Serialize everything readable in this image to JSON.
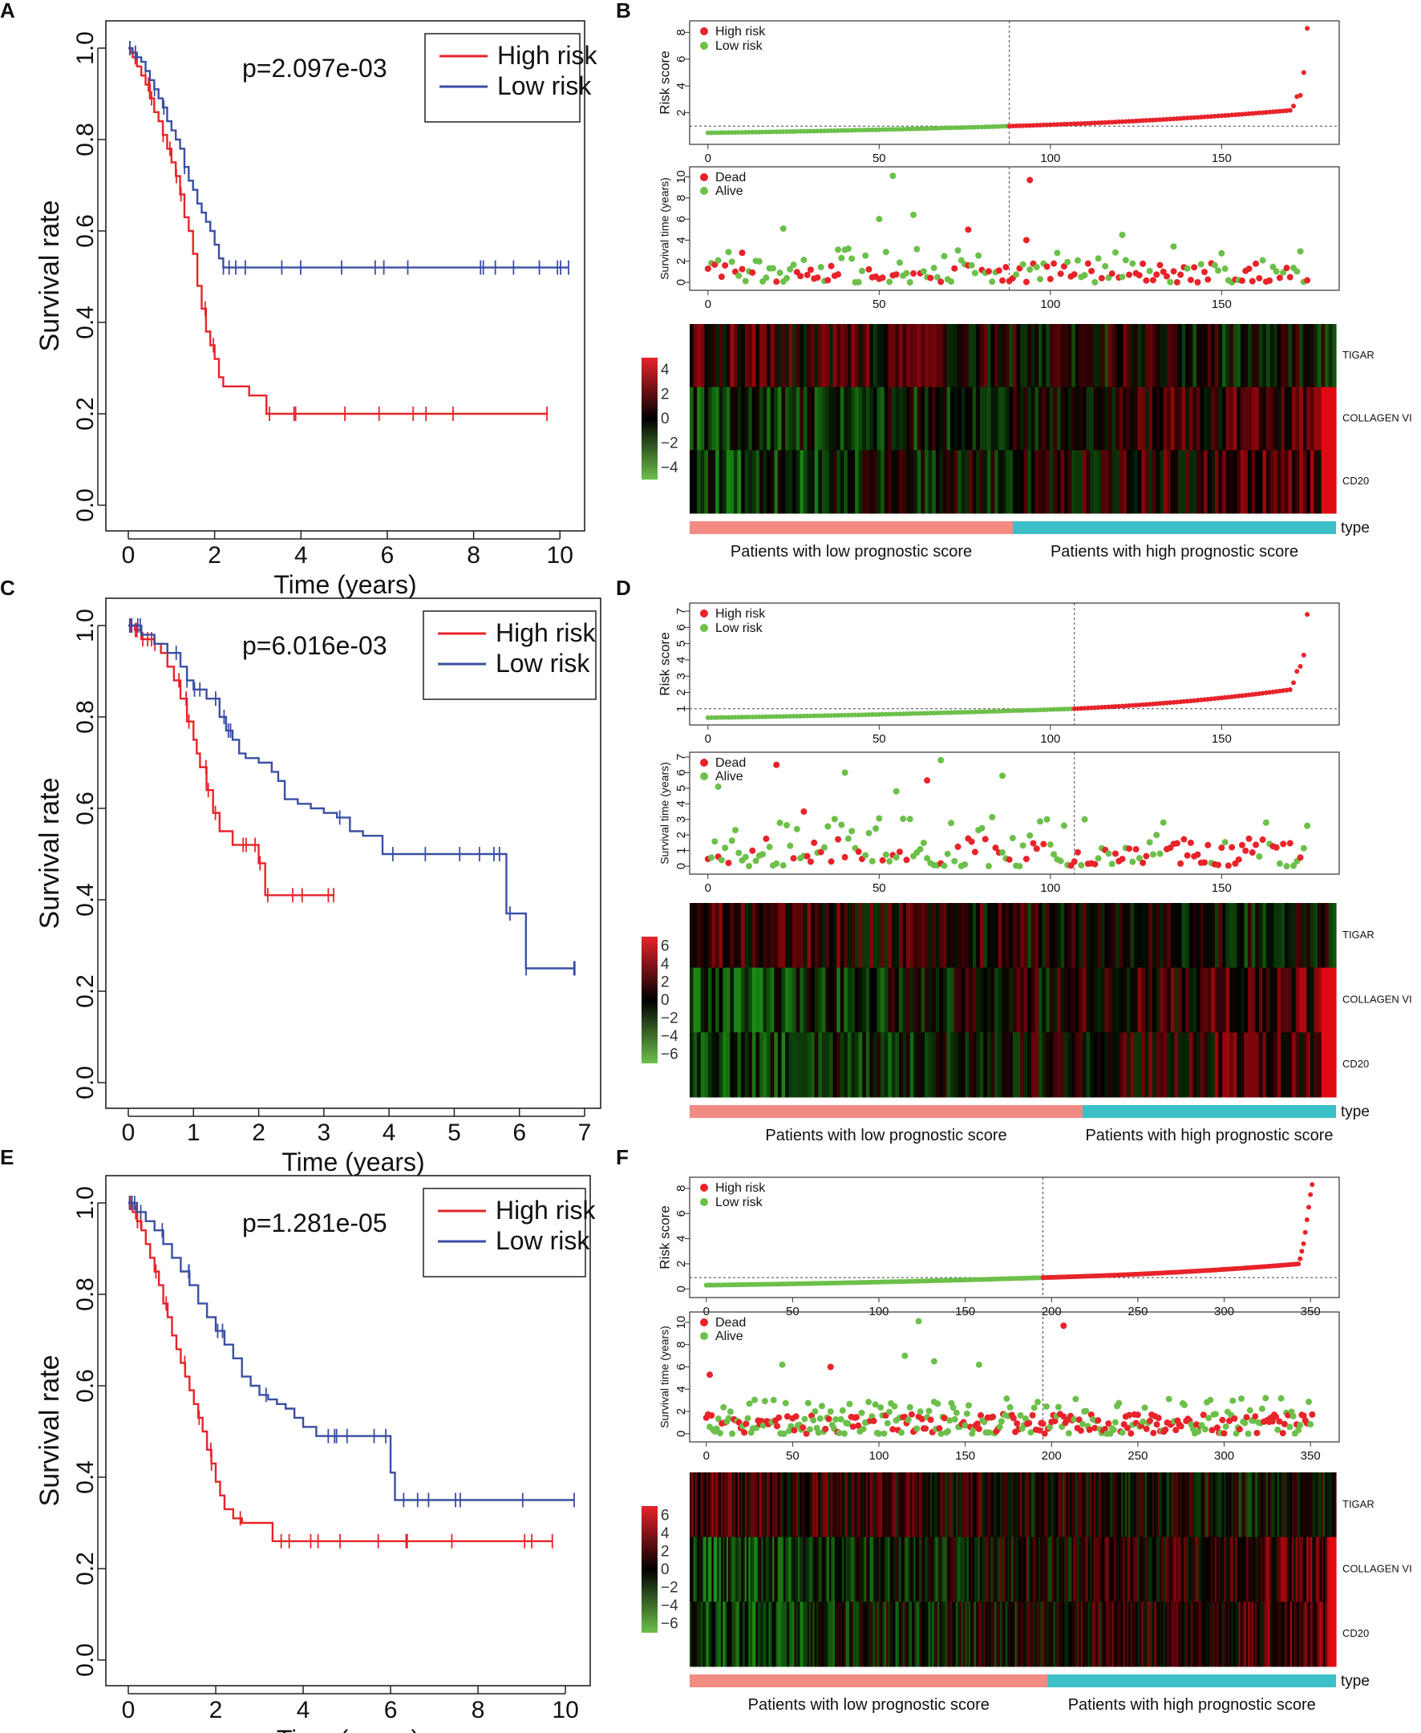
{
  "figure": {
    "panels": {
      "A": {
        "label": "A"
      },
      "B": {
        "label": "B"
      },
      "C": {
        "label": "C"
      },
      "D": {
        "label": "D"
      },
      "E": {
        "label": "E"
      },
      "F": {
        "label": "F"
      }
    }
  },
  "colors": {
    "high": "#e8232a",
    "low": "#3a4fa3",
    "green": "#6cc04a",
    "red_dot": "#e8232a",
    "bar_low": "#f28b82",
    "bar_high": "#3cc0c8"
  },
  "chart_data": [
    {
      "panel": "A",
      "type": "line",
      "title": "",
      "xlabel": "Time (years)",
      "ylabel": "Survival rate",
      "xlim": [
        0,
        10.2
      ],
      "ylim": [
        0,
        1.0
      ],
      "xticks": [
        0,
        2,
        4,
        6,
        8,
        10
      ],
      "yticks": [
        0.0,
        0.2,
        0.4,
        0.6,
        0.8,
        1.0
      ],
      "annotation": "p=2.097e-03",
      "legend": {
        "position": "top-right",
        "entries": [
          "High risk",
          "Low risk"
        ]
      },
      "series": [
        {
          "name": "High risk",
          "color_key": "high",
          "x": [
            0,
            0.05,
            0.1,
            0.2,
            0.3,
            0.4,
            0.5,
            0.6,
            0.7,
            0.8,
            0.9,
            1.0,
            1.1,
            1.2,
            1.3,
            1.4,
            1.5,
            1.6,
            1.7,
            1.8,
            1.9,
            2.0,
            2.1,
            2.2,
            2.5,
            2.8,
            3.1,
            3.2,
            9.7
          ],
          "y": [
            1.0,
            0.99,
            0.98,
            0.96,
            0.94,
            0.92,
            0.89,
            0.86,
            0.84,
            0.81,
            0.78,
            0.75,
            0.72,
            0.68,
            0.63,
            0.6,
            0.55,
            0.48,
            0.43,
            0.38,
            0.35,
            0.32,
            0.28,
            0.26,
            0.26,
            0.24,
            0.24,
            0.2,
            0.2
          ]
        },
        {
          "name": "Low risk",
          "color_key": "low",
          "x": [
            0,
            0.1,
            0.2,
            0.3,
            0.4,
            0.5,
            0.6,
            0.7,
            0.8,
            0.9,
            1.0,
            1.1,
            1.2,
            1.3,
            1.4,
            1.5,
            1.6,
            1.7,
            1.8,
            1.9,
            2.0,
            2.1,
            2.2,
            10.2
          ],
          "y": [
            1.0,
            0.99,
            0.98,
            0.97,
            0.95,
            0.93,
            0.91,
            0.89,
            0.87,
            0.84,
            0.82,
            0.8,
            0.78,
            0.74,
            0.71,
            0.69,
            0.66,
            0.64,
            0.62,
            0.6,
            0.57,
            0.54,
            0.52,
            0.52
          ]
        }
      ]
    },
    {
      "panel": "C",
      "type": "line",
      "title": "",
      "xlabel": "Time (years)",
      "ylabel": "Survival rate",
      "xlim": [
        0,
        7
      ],
      "ylim": [
        0,
        1.0
      ],
      "xticks": [
        0,
        1,
        2,
        3,
        4,
        5,
        6,
        7
      ],
      "yticks": [
        0.0,
        0.2,
        0.4,
        0.6,
        0.8,
        1.0
      ],
      "annotation": "p=6.016e-03",
      "legend": {
        "position": "top-right",
        "entries": [
          "High risk",
          "Low risk"
        ]
      },
      "series": [
        {
          "name": "High risk",
          "color_key": "high",
          "x": [
            0,
            0.1,
            0.2,
            0.4,
            0.5,
            0.6,
            0.7,
            0.8,
            0.9,
            1.0,
            1.05,
            1.1,
            1.2,
            1.3,
            1.4,
            1.6,
            1.8,
            2.0,
            2.1,
            2.2,
            2.4,
            2.6,
            2.8,
            3.0,
            3.15
          ],
          "y": [
            1.0,
            0.99,
            0.97,
            0.96,
            0.94,
            0.91,
            0.88,
            0.84,
            0.79,
            0.75,
            0.72,
            0.69,
            0.64,
            0.59,
            0.55,
            0.52,
            0.52,
            0.48,
            0.41,
            0.41,
            0.41,
            0.41,
            0.41,
            0.41,
            0.41
          ]
        },
        {
          "name": "Low risk",
          "color_key": "low",
          "x": [
            0,
            0.2,
            0.4,
            0.6,
            0.8,
            0.9,
            1.0,
            1.2,
            1.4,
            1.5,
            1.6,
            1.7,
            1.8,
            2.0,
            2.2,
            2.3,
            2.4,
            2.6,
            2.8,
            3.0,
            3.2,
            3.4,
            3.6,
            3.8,
            3.9,
            4.2,
            5.7,
            5.8,
            6.0,
            6.1,
            6.85
          ],
          "y": [
            1.0,
            0.98,
            0.96,
            0.94,
            0.91,
            0.88,
            0.86,
            0.84,
            0.8,
            0.77,
            0.75,
            0.72,
            0.71,
            0.7,
            0.68,
            0.66,
            0.62,
            0.61,
            0.6,
            0.59,
            0.58,
            0.55,
            0.54,
            0.54,
            0.5,
            0.5,
            0.5,
            0.37,
            0.37,
            0.25,
            0.25
          ]
        }
      ]
    },
    {
      "panel": "E",
      "type": "line",
      "title": "",
      "xlabel": "Time (years)",
      "ylabel": "Survival rate",
      "xlim": [
        0,
        10.2
      ],
      "ylim": [
        0,
        1.0
      ],
      "xticks": [
        0,
        2,
        4,
        6,
        8,
        10
      ],
      "yticks": [
        0.0,
        0.2,
        0.4,
        0.6,
        0.8,
        1.0
      ],
      "annotation": "p=1.281e-05",
      "legend": {
        "position": "top-right",
        "entries": [
          "High risk",
          "Low risk"
        ]
      },
      "series": [
        {
          "name": "High risk",
          "color_key": "high",
          "x": [
            0,
            0.1,
            0.2,
            0.3,
            0.4,
            0.5,
            0.6,
            0.7,
            0.8,
            0.9,
            1.0,
            1.1,
            1.2,
            1.3,
            1.4,
            1.5,
            1.6,
            1.7,
            1.8,
            1.9,
            2.0,
            2.1,
            2.2,
            2.4,
            2.6,
            2.8,
            3.0,
            3.2,
            3.3,
            9.7
          ],
          "y": [
            1.0,
            0.98,
            0.96,
            0.94,
            0.91,
            0.88,
            0.85,
            0.82,
            0.78,
            0.75,
            0.71,
            0.68,
            0.65,
            0.62,
            0.59,
            0.56,
            0.53,
            0.5,
            0.46,
            0.43,
            0.39,
            0.36,
            0.33,
            0.31,
            0.3,
            0.3,
            0.3,
            0.3,
            0.26,
            0.26
          ]
        },
        {
          "name": "Low risk",
          "color_key": "low",
          "x": [
            0,
            0.2,
            0.4,
            0.6,
            0.8,
            1.0,
            1.2,
            1.4,
            1.6,
            1.8,
            2.0,
            2.2,
            2.4,
            2.6,
            2.8,
            3.0,
            3.2,
            3.4,
            3.6,
            3.8,
            4.0,
            4.3,
            5.8,
            6.0,
            6.1,
            10.2
          ],
          "y": [
            1.0,
            0.98,
            0.96,
            0.94,
            0.91,
            0.88,
            0.85,
            0.82,
            0.78,
            0.75,
            0.72,
            0.69,
            0.66,
            0.62,
            0.6,
            0.58,
            0.57,
            0.56,
            0.55,
            0.53,
            0.51,
            0.49,
            0.49,
            0.41,
            0.35,
            0.35
          ]
        }
      ]
    },
    {
      "panel": "B",
      "type": "scatter",
      "n": 176,
      "cutoff": 88,
      "risk": {
        "ylabel": "Risk score",
        "yticks": [
          2,
          4,
          6,
          8
        ],
        "ylim": [
          0,
          8.5
        ],
        "xticks": [
          0,
          50,
          100,
          150
        ],
        "xlim": [
          -3,
          182
        ],
        "threshold": 1.0,
        "legend": [
          "High risk",
          "Low risk"
        ],
        "curve": {
          "start": 0.5,
          "cut": 1.0,
          "mid_end": 2.2,
          "tail": [
            2.5,
            3.2,
            3.3,
            5.0,
            8.3
          ]
        }
      },
      "survival": {
        "ylabel": "Survival time (years)",
        "yticks": [
          0,
          2,
          4,
          6,
          8,
          10
        ],
        "ylim": [
          -0.3,
          10.5
        ],
        "xticks": [
          0,
          50,
          100,
          150
        ],
        "xlim": [
          -3,
          182
        ],
        "legend": [
          "Dead",
          "Alive"
        ],
        "highlights": [
          [
            54,
            10.1
          ],
          [
            94,
            9.7
          ],
          [
            60,
            6.4
          ],
          [
            50,
            6.0
          ],
          [
            76,
            5.0
          ],
          [
            22,
            5.1
          ],
          [
            121,
            4.5
          ],
          [
            93,
            4.0
          ],
          [
            136,
            3.4
          ],
          [
            38,
            3.1
          ],
          [
            10,
            2.8
          ]
        ]
      },
      "heatmap": {
        "genes": [
          "TIGAR",
          "COLLAGEN VI",
          "CD20"
        ],
        "scale_ticks": [
          4,
          2,
          0,
          -2,
          -4
        ],
        "vmax": 5
      },
      "type_bar": {
        "label": "type",
        "low_text": "Patients with low prognostic score",
        "high_text": "Patients with high prognostic score"
      }
    },
    {
      "panel": "D",
      "type": "scatter",
      "n": 176,
      "cutoff": 107,
      "risk": {
        "ylabel": "Risk score",
        "yticks": [
          1,
          2,
          3,
          4,
          5,
          6,
          7
        ],
        "ylim": [
          0.3,
          7.2
        ],
        "xticks": [
          0,
          50,
          100,
          150
        ],
        "xlim": [
          -3,
          182
        ],
        "threshold": 1.0,
        "legend": [
          "High risk",
          "Low risk"
        ],
        "curve": {
          "start": 0.45,
          "cut": 1.0,
          "mid_end": 2.2,
          "tail": [
            2.6,
            3.3,
            3.6,
            4.3,
            6.8
          ]
        }
      },
      "survival": {
        "ylabel": "Survival time (years)",
        "yticks": [
          0,
          1,
          2,
          3,
          4,
          5,
          6,
          7
        ],
        "ylim": [
          -0.2,
          7.0
        ],
        "xticks": [
          0,
          50,
          100,
          150
        ],
        "xlim": [
          -3,
          182
        ],
        "legend": [
          "Dead",
          "Alive"
        ],
        "highlights": [
          [
            68,
            6.8
          ],
          [
            20,
            6.5
          ],
          [
            40,
            6.0
          ],
          [
            86,
            5.8
          ],
          [
            64,
            5.5
          ],
          [
            55,
            4.8
          ],
          [
            3,
            5.1
          ],
          [
            28,
            3.5
          ]
        ]
      },
      "heatmap": {
        "genes": [
          "TIGAR",
          "COLLAGEN VI",
          "CD20"
        ],
        "scale_ticks": [
          6,
          4,
          2,
          0,
          -2,
          -4,
          -6
        ],
        "vmax": 7
      },
      "type_bar": {
        "label": "type",
        "low_text": "Patients with low prognostic score",
        "high_text": "Patients with high prognostic score"
      }
    },
    {
      "panel": "F",
      "type": "scatter",
      "n": 352,
      "cutoff": 195,
      "risk": {
        "ylabel": "Risk score",
        "yticks": [
          0,
          2,
          4,
          6,
          8
        ],
        "ylim": [
          -0.3,
          8.5
        ],
        "xticks": [
          0,
          50,
          100,
          150,
          200,
          250,
          300,
          350
        ],
        "xlim": [
          -5,
          362
        ],
        "threshold": 0.9,
        "legend": [
          "High risk",
          "Low risk"
        ],
        "curve": {
          "start": 0.3,
          "cut": 0.9,
          "mid_end": 2.0,
          "tail": [
            2.4,
            3.0,
            3.6,
            4.5,
            5.5,
            6.5,
            7.5,
            8.3
          ]
        }
      },
      "survival": {
        "ylabel": "Survival time (years)",
        "yticks": [
          0,
          2,
          4,
          6,
          8,
          10
        ],
        "ylim": [
          -0.3,
          10.5
        ],
        "xticks": [
          0,
          50,
          100,
          150,
          200,
          250,
          300,
          350
        ],
        "xlim": [
          -5,
          362
        ],
        "legend": [
          "Dead",
          "Alive"
        ],
        "highlights": [
          [
            123,
            10.1
          ],
          [
            207,
            9.7
          ],
          [
            115,
            7.0
          ],
          [
            132,
            6.5
          ],
          [
            72,
            6.0
          ],
          [
            158,
            6.2
          ],
          [
            44,
            6.2
          ],
          [
            2,
            5.3
          ]
        ]
      },
      "heatmap": {
        "genes": [
          "TIGAR",
          "COLLAGEN VI",
          "CD20"
        ],
        "scale_ticks": [
          6,
          4,
          2,
          0,
          -2,
          -4,
          -6
        ],
        "vmax": 7
      },
      "type_bar": {
        "label": "type",
        "low_text": "Patients with low prognostic score",
        "high_text": "Patients with high prognostic score"
      }
    }
  ]
}
